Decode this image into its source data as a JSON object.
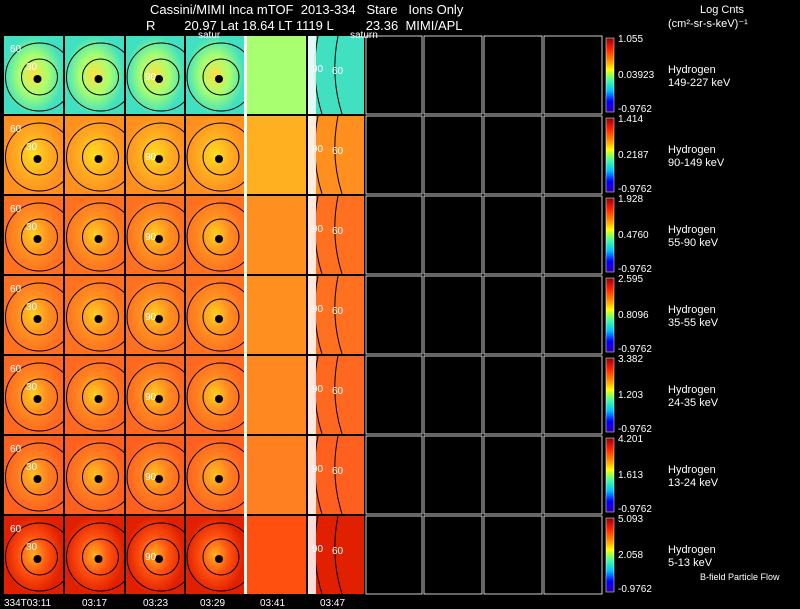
{
  "header": {
    "title_line1": "Cassini/MIMI Inca mTOF  2013-334   Stare   Ions Only",
    "title_line2": "R        20.97 Lat 18.64 LT 1119 L         23.36  MIMI/APL",
    "units_line1": "Log Cnts",
    "units_line2": "(cm²-sr-s-keV)⁻¹",
    "overlay_left": "satur",
    "overlay_right": "saturn"
  },
  "footer_label": "B-field Particle Flow",
  "chart_data": {
    "type": "heatmap",
    "title": "Cassini/MIMI Inca mTOF  2013-334   Stare   Ions Only",
    "description_axis": "time columns x energy rows",
    "time_labels": [
      "334T03:11",
      "03:17",
      "03:23",
      "03:29",
      "03:41",
      "03:47"
    ],
    "species": "Hydrogen",
    "bands": [
      {
        "species": "Hydrogen",
        "energy": "149-227 keV",
        "max": "1.055",
        "mid": "0.03923",
        "min": "-0.9762"
      },
      {
        "species": "Hydrogen",
        "energy": "90-149 keV",
        "max": "1.414",
        "mid": "0.2187",
        "min": "-0.9762"
      },
      {
        "species": "Hydrogen",
        "energy": "55-90 keV",
        "max": "1.928",
        "mid": "0.4760",
        "min": "-0.9762"
      },
      {
        "species": "Hydrogen",
        "energy": "35-55 keV",
        "max": "2.595",
        "mid": "0.8096",
        "min": "-0.9762"
      },
      {
        "species": "Hydrogen",
        "energy": "24-35 keV",
        "max": "3.382",
        "mid": "1.203",
        "min": "-0.9762"
      },
      {
        "species": "Hydrogen",
        "energy": "13-24 keV",
        "max": "4.201",
        "mid": "1.613",
        "min": "-0.9762"
      },
      {
        "species": "Hydrogen",
        "energy": "5-13 keV",
        "max": "5.093",
        "mid": "2.058",
        "min": "-0.9762"
      }
    ],
    "contour_labels": [
      "30",
      "60",
      "90"
    ],
    "colors": {
      "background": "#000000",
      "grid": "#ffffff",
      "colorbar": [
        "#8b0000",
        "#ff2000",
        "#ff8000",
        "#ffff00",
        "#40ffa0",
        "#00c0ff",
        "#0000ff",
        "#3000a0"
      ]
    }
  }
}
